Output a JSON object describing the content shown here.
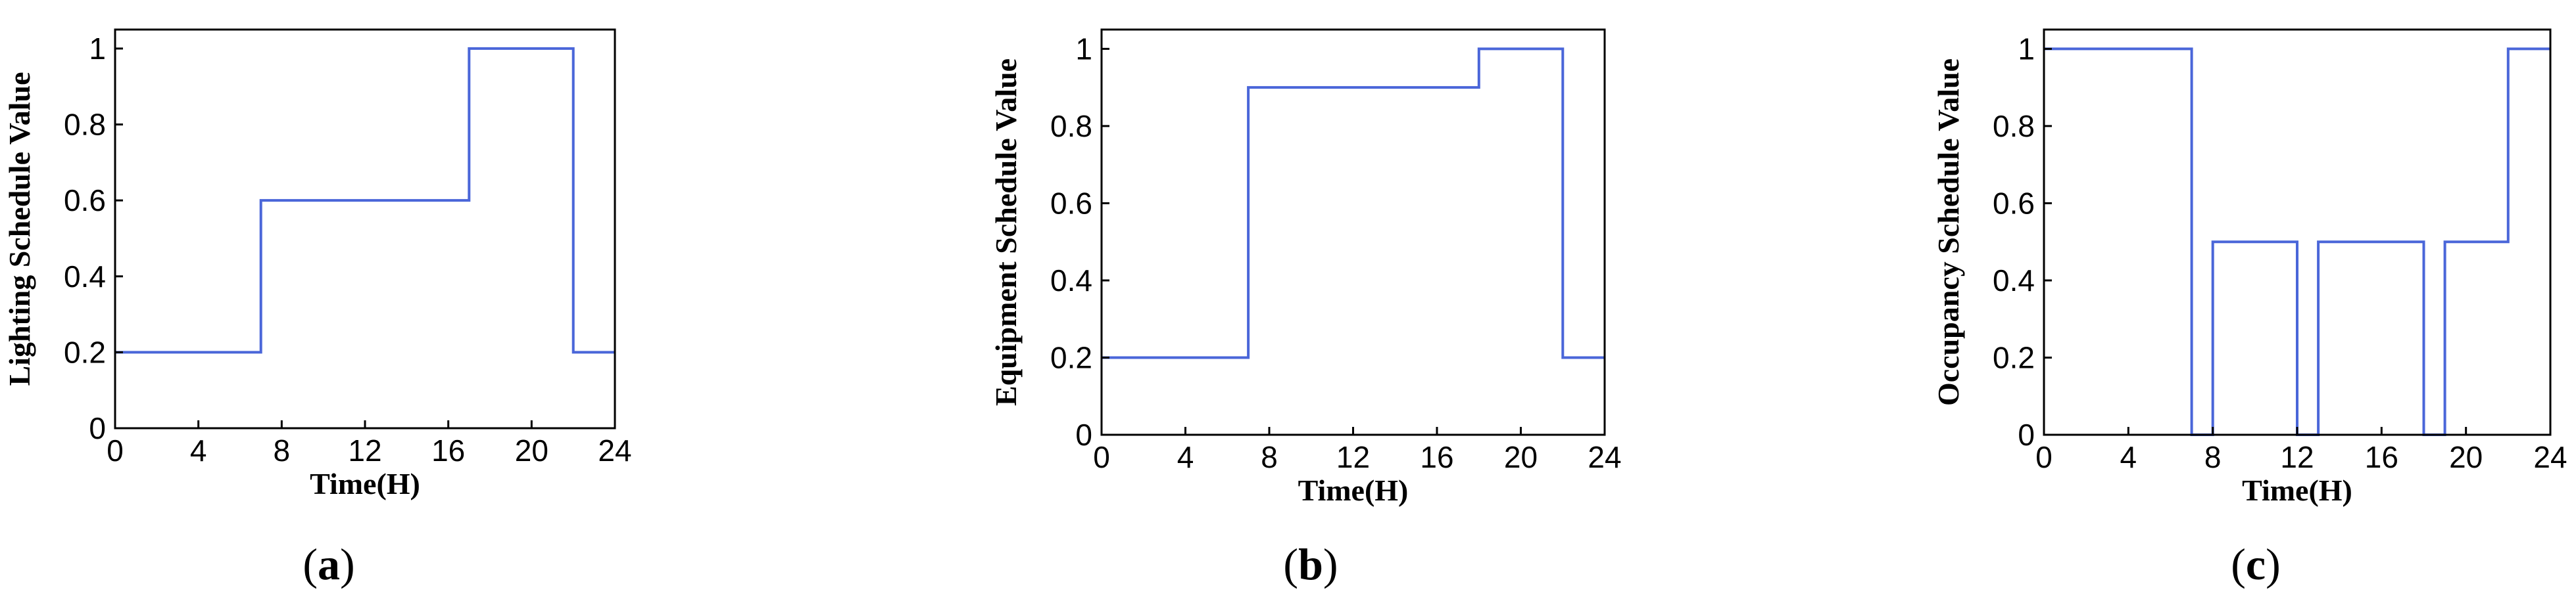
{
  "chart_data": [
    {
      "type": "line",
      "panel_label": "a",
      "xlabel": "Time(H)",
      "ylabel": "Lighting Schedule Value",
      "xlim": [
        0,
        24
      ],
      "ylim": [
        0,
        1.05
      ],
      "xticks": [
        "0",
        "4",
        "8",
        "12",
        "16",
        "20",
        "24"
      ],
      "yticks": [
        "0",
        "0.2",
        "0.4",
        "0.6",
        "0.8",
        "1"
      ],
      "grid": false,
      "series": [
        {
          "x": [
            0,
            7,
            7,
            17,
            17,
            22,
            22,
            24
          ],
          "y": [
            0.2,
            0.2,
            0.6,
            0.6,
            1,
            1,
            0.2,
            0.2
          ]
        }
      ],
      "colors": {
        "line": "#4a66d9"
      }
    },
    {
      "type": "line",
      "panel_label": "b",
      "xlabel": "Time(H)",
      "ylabel": "Equipment Schedule Value",
      "xlim": [
        0,
        24
      ],
      "ylim": [
        0,
        1.05
      ],
      "xticks": [
        "0",
        "4",
        "8",
        "12",
        "16",
        "20",
        "24"
      ],
      "yticks": [
        "0",
        "0.2",
        "0.4",
        "0.6",
        "0.8",
        "1"
      ],
      "grid": false,
      "series": [
        {
          "x": [
            0,
            7,
            7,
            18,
            18,
            22,
            22,
            24
          ],
          "y": [
            0.2,
            0.2,
            0.9,
            0.9,
            1,
            1,
            0.2,
            0.2
          ]
        }
      ],
      "colors": {
        "line": "#4a66d9"
      }
    },
    {
      "type": "line",
      "panel_label": "c",
      "xlabel": "Time(H)",
      "ylabel": "Occupancy Schedule Value",
      "xlim": [
        0,
        24
      ],
      "ylim": [
        0,
        1.05
      ],
      "xticks": [
        "0",
        "4",
        "8",
        "12",
        "16",
        "20",
        "24"
      ],
      "yticks": [
        "0",
        "0.2",
        "0.4",
        "0.6",
        "0.8",
        "1"
      ],
      "grid": false,
      "series": [
        {
          "x": [
            0,
            7,
            7,
            8,
            8,
            12,
            12,
            13,
            13,
            18,
            18,
            19,
            19,
            22,
            22,
            24
          ],
          "y": [
            1,
            1,
            0,
            0,
            0.5,
            0.5,
            0,
            0,
            0.5,
            0.5,
            0,
            0,
            0.5,
            0.5,
            1,
            1
          ]
        }
      ],
      "colors": {
        "line": "#4a66d9"
      }
    }
  ]
}
